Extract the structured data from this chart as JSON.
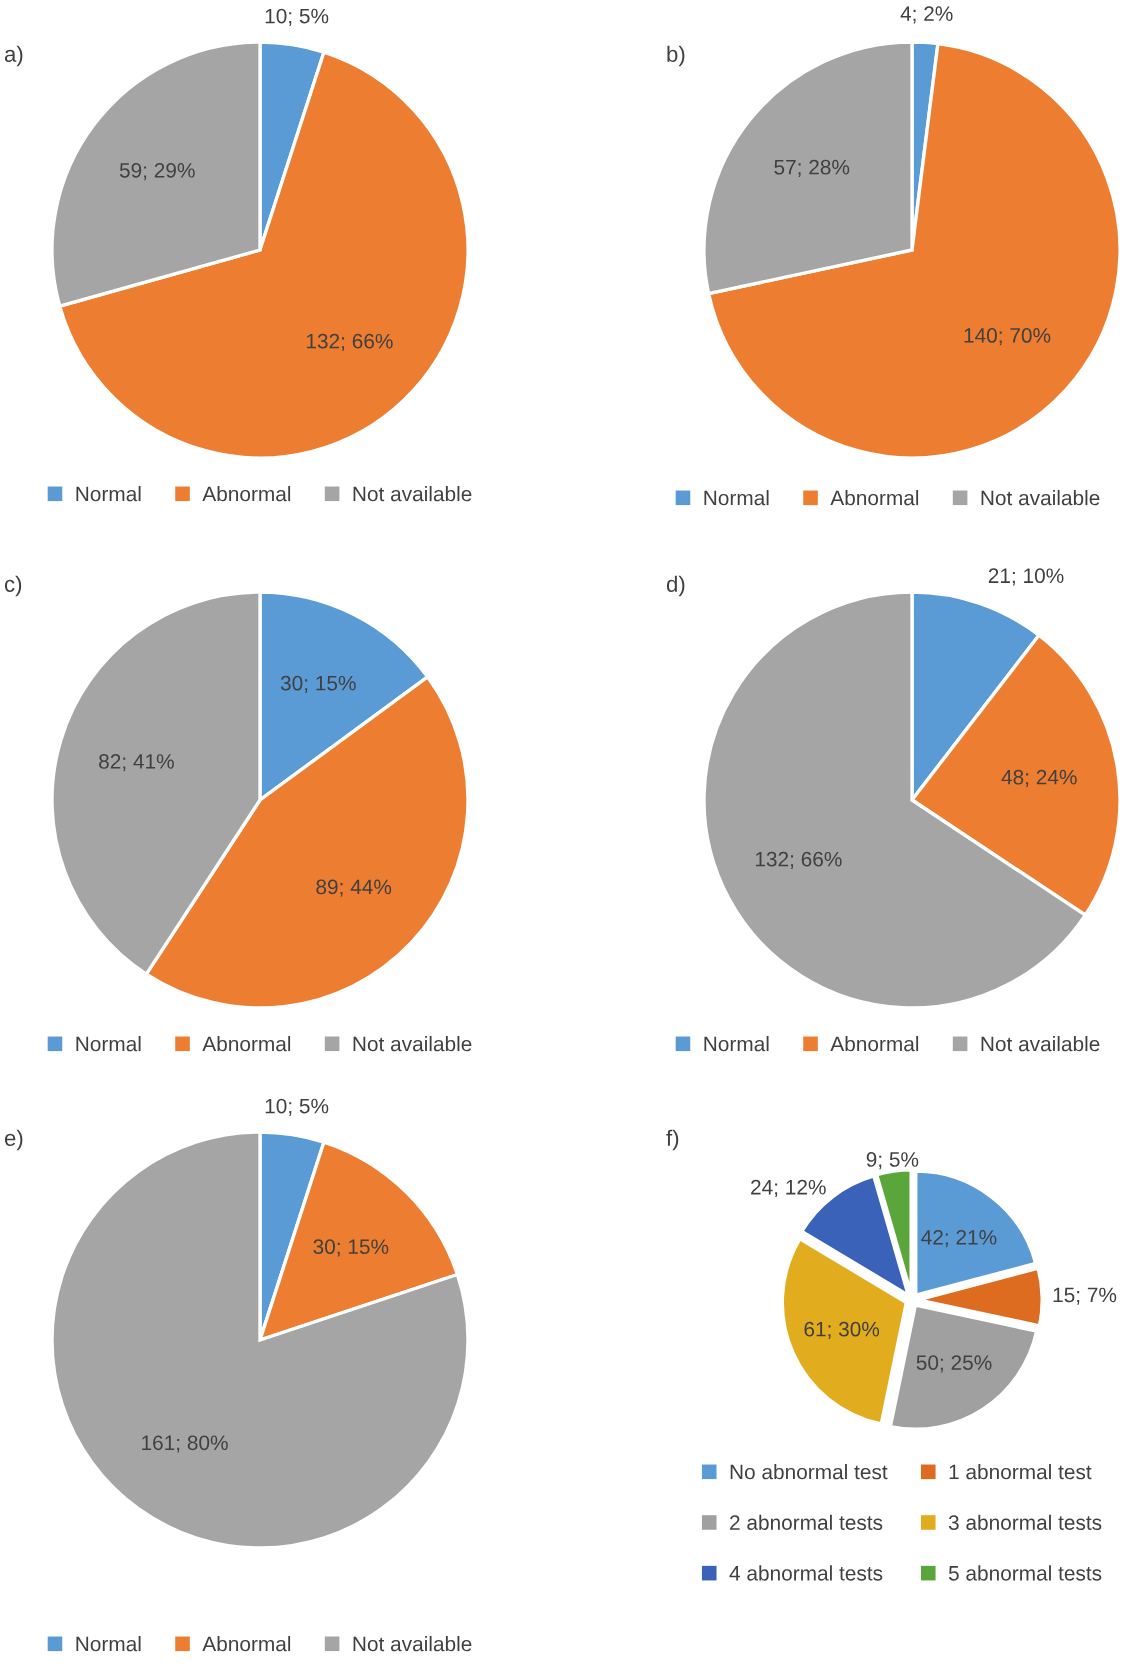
{
  "chart_data": [
    {
      "type": "pie",
      "title": "a)",
      "categories": [
        "Normal",
        "Abnormal",
        "Not available"
      ],
      "values": [
        10,
        132,
        59
      ],
      "value_labels": [
        "10; 5%",
        "132; 66%",
        "59; 29%"
      ],
      "colors": [
        "#5b9bd5",
        "#ed7d31",
        "#a5a5a5"
      ],
      "legend": "bottom"
    },
    {
      "type": "pie",
      "title": "b)",
      "categories": [
        "Normal",
        "Abnormal",
        "Not available"
      ],
      "values": [
        4,
        140,
        57
      ],
      "value_labels": [
        "4; 2%",
        "140; 70%",
        "57; 28%"
      ],
      "colors": [
        "#5b9bd5",
        "#ed7d31",
        "#a5a5a5"
      ],
      "legend": "bottom"
    },
    {
      "type": "pie",
      "title": "c)",
      "categories": [
        "Normal",
        "Abnormal",
        "Not available"
      ],
      "values": [
        30,
        89,
        82
      ],
      "value_labels": [
        "30; 15%",
        "89; 44%",
        "82; 41%"
      ],
      "colors": [
        "#5b9bd5",
        "#ed7d31",
        "#a5a5a5"
      ],
      "legend": "bottom"
    },
    {
      "type": "pie",
      "title": "d)",
      "categories": [
        "Normal",
        "Abnormal",
        "Not available"
      ],
      "values": [
        21,
        48,
        132
      ],
      "value_labels": [
        "21; 10%",
        "48; 24%",
        "132; 66%"
      ],
      "colors": [
        "#5b9bd5",
        "#ed7d31",
        "#a5a5a5"
      ],
      "legend": "bottom"
    },
    {
      "type": "pie",
      "title": "e)",
      "categories": [
        "Normal",
        "Abnormal",
        "Not available"
      ],
      "values": [
        10,
        30,
        161
      ],
      "value_labels": [
        "10; 5%",
        "30; 15%",
        "161; 80%"
      ],
      "colors": [
        "#5b9bd5",
        "#ed7d31",
        "#a5a5a5"
      ],
      "legend": "bottom"
    },
    {
      "type": "pie",
      "title": "f)",
      "categories": [
        "No abnormal test",
        "1 abnormal test",
        "2 abnormal tests",
        "3 abnormal tests",
        "4 abnormal tests",
        "5 abnormal tests"
      ],
      "values": [
        42,
        15,
        50,
        61,
        24,
        9
      ],
      "value_labels": [
        "42; 21%",
        "15; 7%",
        "50; 25%",
        "61; 30%",
        "24; 12%",
        "9; 5%"
      ],
      "colors": [
        "#5b9bd5",
        "#dd6b20",
        "#a0a0a0",
        "#e2ac1f",
        "#3a62b8",
        "#5aa63a"
      ],
      "legend": "bottom"
    }
  ]
}
